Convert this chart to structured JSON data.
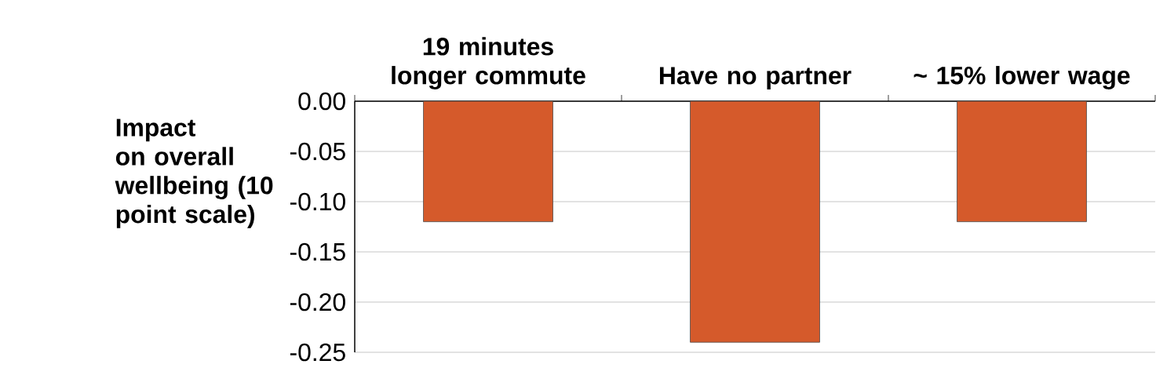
{
  "chart_data": {
    "type": "bar",
    "ylabel": "Impact on overall wellbeing (10 point scale)",
    "categories": [
      "19 minutes longer commute",
      "Have no partner",
      "~ 15% lower wage"
    ],
    "values": [
      -0.12,
      -0.24,
      -0.12
    ],
    "color": "#d55a2b",
    "ylim": [
      -0.25,
      0
    ],
    "yticks": [
      {
        "value": 0,
        "label": "0.00"
      },
      {
        "value": -0.05,
        "label": "-0.05"
      },
      {
        "value": -0.1,
        "label": "-0.10"
      },
      {
        "value": -0.15,
        "label": "-0.15"
      },
      {
        "value": -0.2,
        "label": "-0.20"
      },
      {
        "value": -0.25,
        "label": "-0.25"
      }
    ],
    "grid": "y"
  }
}
